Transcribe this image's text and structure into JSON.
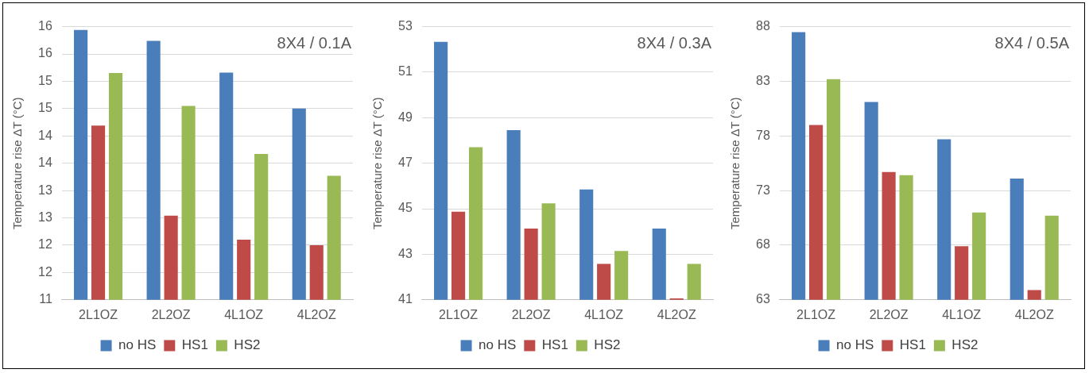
{
  "chart_data": [
    {
      "type": "bar",
      "ylabel": "Temperature rise ΔT (°C)",
      "annotations": [
        "8X4 / 0.1A"
      ],
      "categories": [
        "2L1OZ",
        "2L2OZ",
        "4L1OZ",
        "4L2OZ"
      ],
      "series": [
        {
          "name": "no HS",
          "color": "#4a7ebb",
          "values": [
            15.94,
            15.74,
            15.16,
            14.5
          ]
        },
        {
          "name": "HS1",
          "color": "#be4b48",
          "values": [
            14.19,
            12.54,
            12.1,
            12.0
          ]
        },
        {
          "name": "HS2",
          "color": "#98b954",
          "values": [
            15.15,
            14.55,
            13.67,
            13.27
          ]
        }
      ],
      "ylim": [
        11,
        16
      ],
      "yticks": [
        11,
        {
          "value": 11.5,
          "label": "12"
        },
        12,
        {
          "value": 12.5,
          "label": "13"
        },
        13,
        {
          "value": 13.5,
          "label": "14"
        },
        14,
        {
          "value": 14.5,
          "label": "15"
        },
        15,
        {
          "value": 15.5,
          "label": "16"
        },
        16
      ],
      "grid": "y",
      "legend": "bottom"
    },
    {
      "type": "bar",
      "ylabel": "Temperature rise ΔT (°C)",
      "annotations": [
        "8X4 / 0.3A"
      ],
      "categories": [
        "2L1OZ",
        "2L2OZ",
        "4L1OZ",
        "4L2OZ"
      ],
      "series": [
        {
          "name": "no HS",
          "color": "#4a7ebb",
          "values": [
            52.33,
            48.45,
            45.85,
            44.13
          ]
        },
        {
          "name": "HS1",
          "color": "#be4b48",
          "values": [
            44.87,
            44.13,
            42.58,
            41.06
          ]
        },
        {
          "name": "HS2",
          "color": "#98b954",
          "values": [
            47.7,
            45.24,
            43.15,
            42.58
          ]
        }
      ],
      "ylim": [
        41,
        53
      ],
      "yticks": [
        41,
        43,
        45,
        47,
        49,
        51,
        53
      ],
      "grid": "y",
      "legend": "bottom"
    },
    {
      "type": "bar",
      "ylabel": "Temperature rise ΔT (°C)",
      "annotations": [
        "8X4 / 0.5A"
      ],
      "categories": [
        "2L1OZ",
        "2L2OZ",
        "4L1OZ",
        "4L2OZ"
      ],
      "series": [
        {
          "name": "no HS",
          "color": "#4a7ebb",
          "values": [
            87.5,
            81.1,
            77.7,
            74.1
          ]
        },
        {
          "name": "HS1",
          "color": "#be4b48",
          "values": [
            79.0,
            74.7,
            67.9,
            63.9
          ]
        },
        {
          "name": "HS2",
          "color": "#98b954",
          "values": [
            83.2,
            74.4,
            71.0,
            70.7
          ]
        }
      ],
      "ylim": [
        63,
        88
      ],
      "yticks": [
        63,
        68,
        73,
        78,
        83,
        88
      ],
      "grid": "y",
      "legend": "bottom"
    }
  ]
}
